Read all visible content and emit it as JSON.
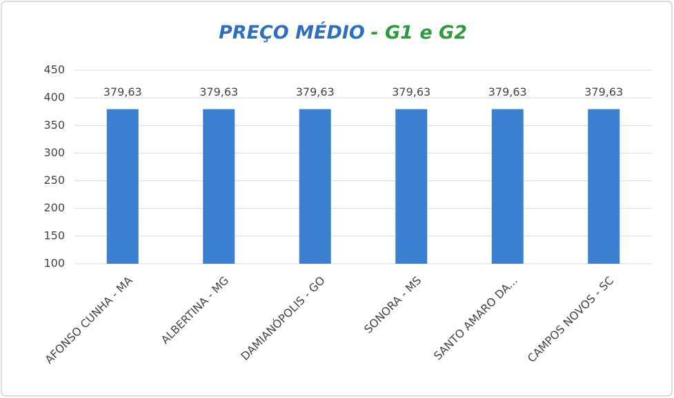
{
  "chart_data": {
    "type": "bar",
    "title_parts": [
      {
        "text": "PREÇO MÉDIO",
        "color": "#2f6fc0"
      },
      {
        "text": "- G1 e G2",
        "color": "#2e9a3e"
      }
    ],
    "categories": [
      "AFONSO CUNHA - MA",
      "ALBERTINA - MG",
      "DAMIANÓPOLIS - GO",
      "SONORA - MS",
      "SANTO AMARO DA...",
      "CAMPOS NOVOS - SC"
    ],
    "values": [
      379.63,
      379.63,
      379.63,
      379.63,
      379.63,
      379.63
    ],
    "value_labels": [
      "379,63",
      "379,63",
      "379,63",
      "379,63",
      "379,63",
      "379,63"
    ],
    "color": "#3a7fd0",
    "ylim": [
      100,
      450
    ],
    "yticks": [
      100,
      150,
      200,
      250,
      300,
      350,
      400,
      450
    ],
    "grid": true
  }
}
